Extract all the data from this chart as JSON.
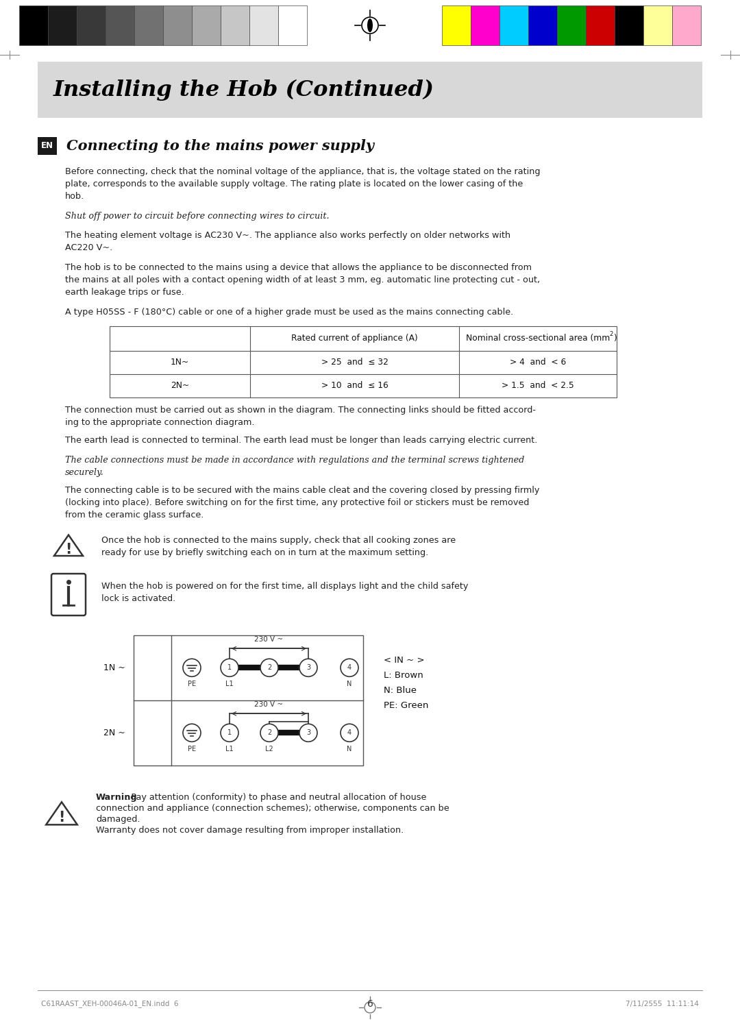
{
  "page_bg": "#ffffff",
  "header_bar_color": "#d8d8d8",
  "header_title": "Installing the Hob (Continued)",
  "header_title_color": "#000000",
  "en_box_color": "#1a1a1a",
  "en_text": "EN",
  "section_title": "Connecting to the mains power supply",
  "body_text_color": "#222222",
  "paragraphs": [
    "Before connecting, check that the nominal voltage of the appliance, that is, the voltage stated on the rating\nplate, corresponds to the available supply voltage. The rating plate is located on the lower casing of the\nhob.",
    "The heating element voltage is AC230 V~. The appliance also works perfectly on older networks with\nAC220 V~.",
    "The hob is to be connected to the mains using a device that allows the appliance to be disconnected from\nthe mains at all poles with a contact opening width of at least 3 mm, eg. automatic line protecting cut - out,\nearth leakage trips or fuse.",
    "A type H05SS - F (180°C) cable or one of a higher grade must be used as the mains connecting cable.",
    "The connection must be carried out as shown in the diagram. The connecting links should be fitted accord-\ning to the appropriate connection diagram.",
    "The earth lead is connected to terminal. The earth lead must be longer than leads carrying electric current.",
    "The connecting cable is to be secured with the mains cable cleat and the covering closed by pressing firmly\n(locking into place). Before switching on for the first time, any protective foil or stickers must be removed\nfrom the ceramic glass surface."
  ],
  "italic_paragraphs": [
    "Shut off power to circuit before connecting wires to circuit.",
    "The cable connections must be made in accordance with regulations and the terminal screws tightened\nsecurely."
  ],
  "table_header_col2": "Rated current of appliance (A)",
  "table_header_col3": "Nominal cross-sectional area (mm",
  "table_rows": [
    [
      "1N~",
      "> 25  and  ≤ 32",
      "> 4  and  < 6"
    ],
    [
      "2N~",
      "> 10  and  ≤ 16",
      "> 1.5  and  < 2.5"
    ]
  ],
  "warning_text_1": "Once the hob is connected to the mains supply, check that all cooking zones are\nready for use by briefly switching each on in turn at the maximum setting.",
  "info_text": "When the hob is powered on for the first time, all displays light and the child safety\nlock is activated.",
  "warning_bold": "Warning",
  "warning_text_2a": ": Pay attention (conformity) to phase and neutral allocation of house",
  "warning_text_2b": "connection and appliance (connection schemes); otherwise, components can be",
  "warning_text_2c": "damaged.",
  "warning_text_2d": "Warranty does not cover damage resulting from improper installation.",
  "legend_lines": [
    "< IN ~ >",
    "L: Brown",
    "N: Blue",
    "PE: Green"
  ],
  "footer_text": "6",
  "footer_left": "C61RAAST_XEH-00046A-01_EN.indd  6",
  "footer_right": "7/11/2555  11:11:14",
  "gray_bars": [
    "#000000",
    "#1c1c1c",
    "#393939",
    "#555555",
    "#717171",
    "#8e8e8e",
    "#aaaaaa",
    "#c6c6c6",
    "#e3e3e3",
    "#ffffff"
  ],
  "color_bars": [
    "#ffff00",
    "#ff00cc",
    "#00ccff",
    "#0000cc",
    "#009900",
    "#cc0000",
    "#000000",
    "#ffff99",
    "#ffaacc"
  ]
}
